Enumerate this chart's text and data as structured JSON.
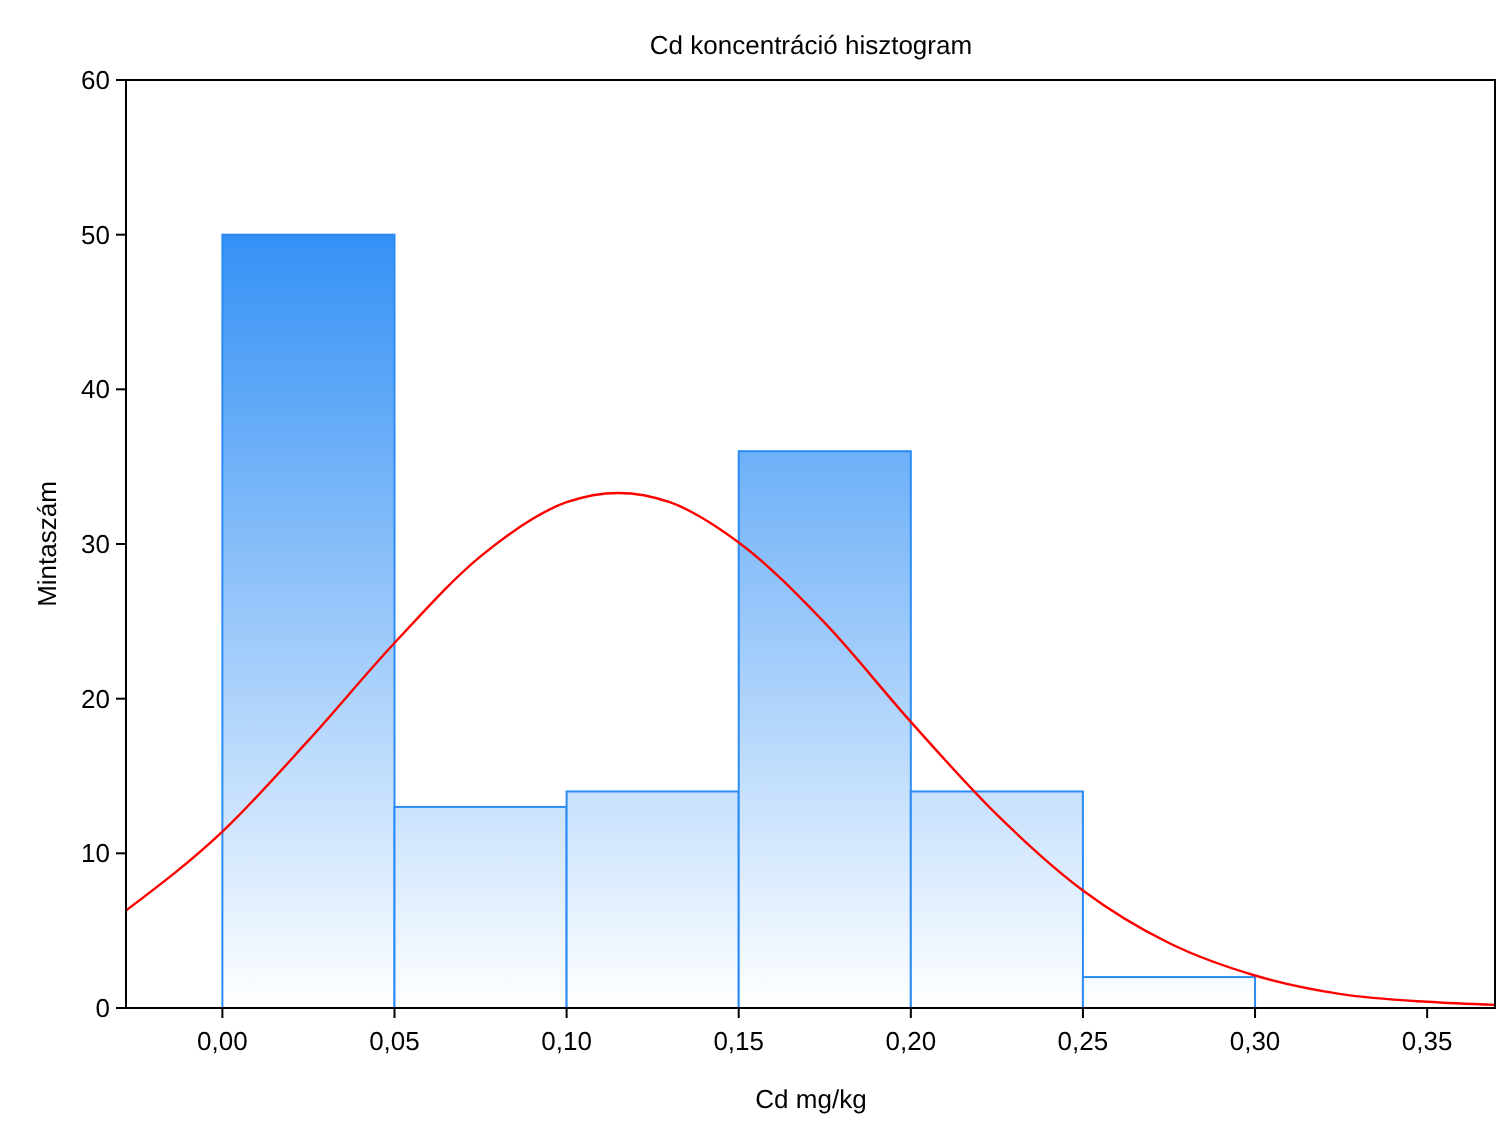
{
  "chart_data": {
    "type": "histogram",
    "title": "Cd koncentráció hisztogram",
    "xlabel": "Cd mg/kg",
    "ylabel": "Mintaszám",
    "bins": [
      0,
      0.05,
      0.1,
      0.15,
      0.2,
      0.25,
      0.3
    ],
    "values": [
      50,
      13,
      14,
      36,
      14,
      2
    ],
    "color": "#2b8cf5",
    "series": [
      {
        "type": "line",
        "color": "#ff0000",
        "x": [
          -0.028,
          0,
          0.025,
          0.05,
          0.075,
          0.1,
          0.115,
          0.13,
          0.15,
          0.175,
          0.2,
          0.225,
          0.25,
          0.275,
          0.3,
          0.325,
          0.35,
          0.37
        ],
        "values": [
          6.3,
          11.4,
          17.3,
          23.6,
          29.2,
          32.7,
          33.3,
          32.7,
          30.1,
          24.9,
          18.5,
          12.5,
          7.6,
          4.2,
          2.1,
          0.9,
          0.4,
          0.2
        ]
      }
    ],
    "xlim": [
      -0.028,
      0.37
    ],
    "xticks": [
      {
        "value": 0,
        "label": "0,00"
      },
      {
        "value": 0.05,
        "label": "0,05"
      },
      {
        "value": 0.1,
        "label": "0,10"
      },
      {
        "value": 0.15,
        "label": "0,15"
      },
      {
        "value": 0.2,
        "label": "0,20"
      },
      {
        "value": 0.25,
        "label": "0,25"
      },
      {
        "value": 0.3,
        "label": "0,30"
      },
      {
        "value": 0.35,
        "label": "0,35"
      }
    ],
    "ylim": [
      0,
      60
    ],
    "yticks": [
      0,
      10,
      20,
      30,
      40,
      50,
      60
    ],
    "grid": false
  }
}
